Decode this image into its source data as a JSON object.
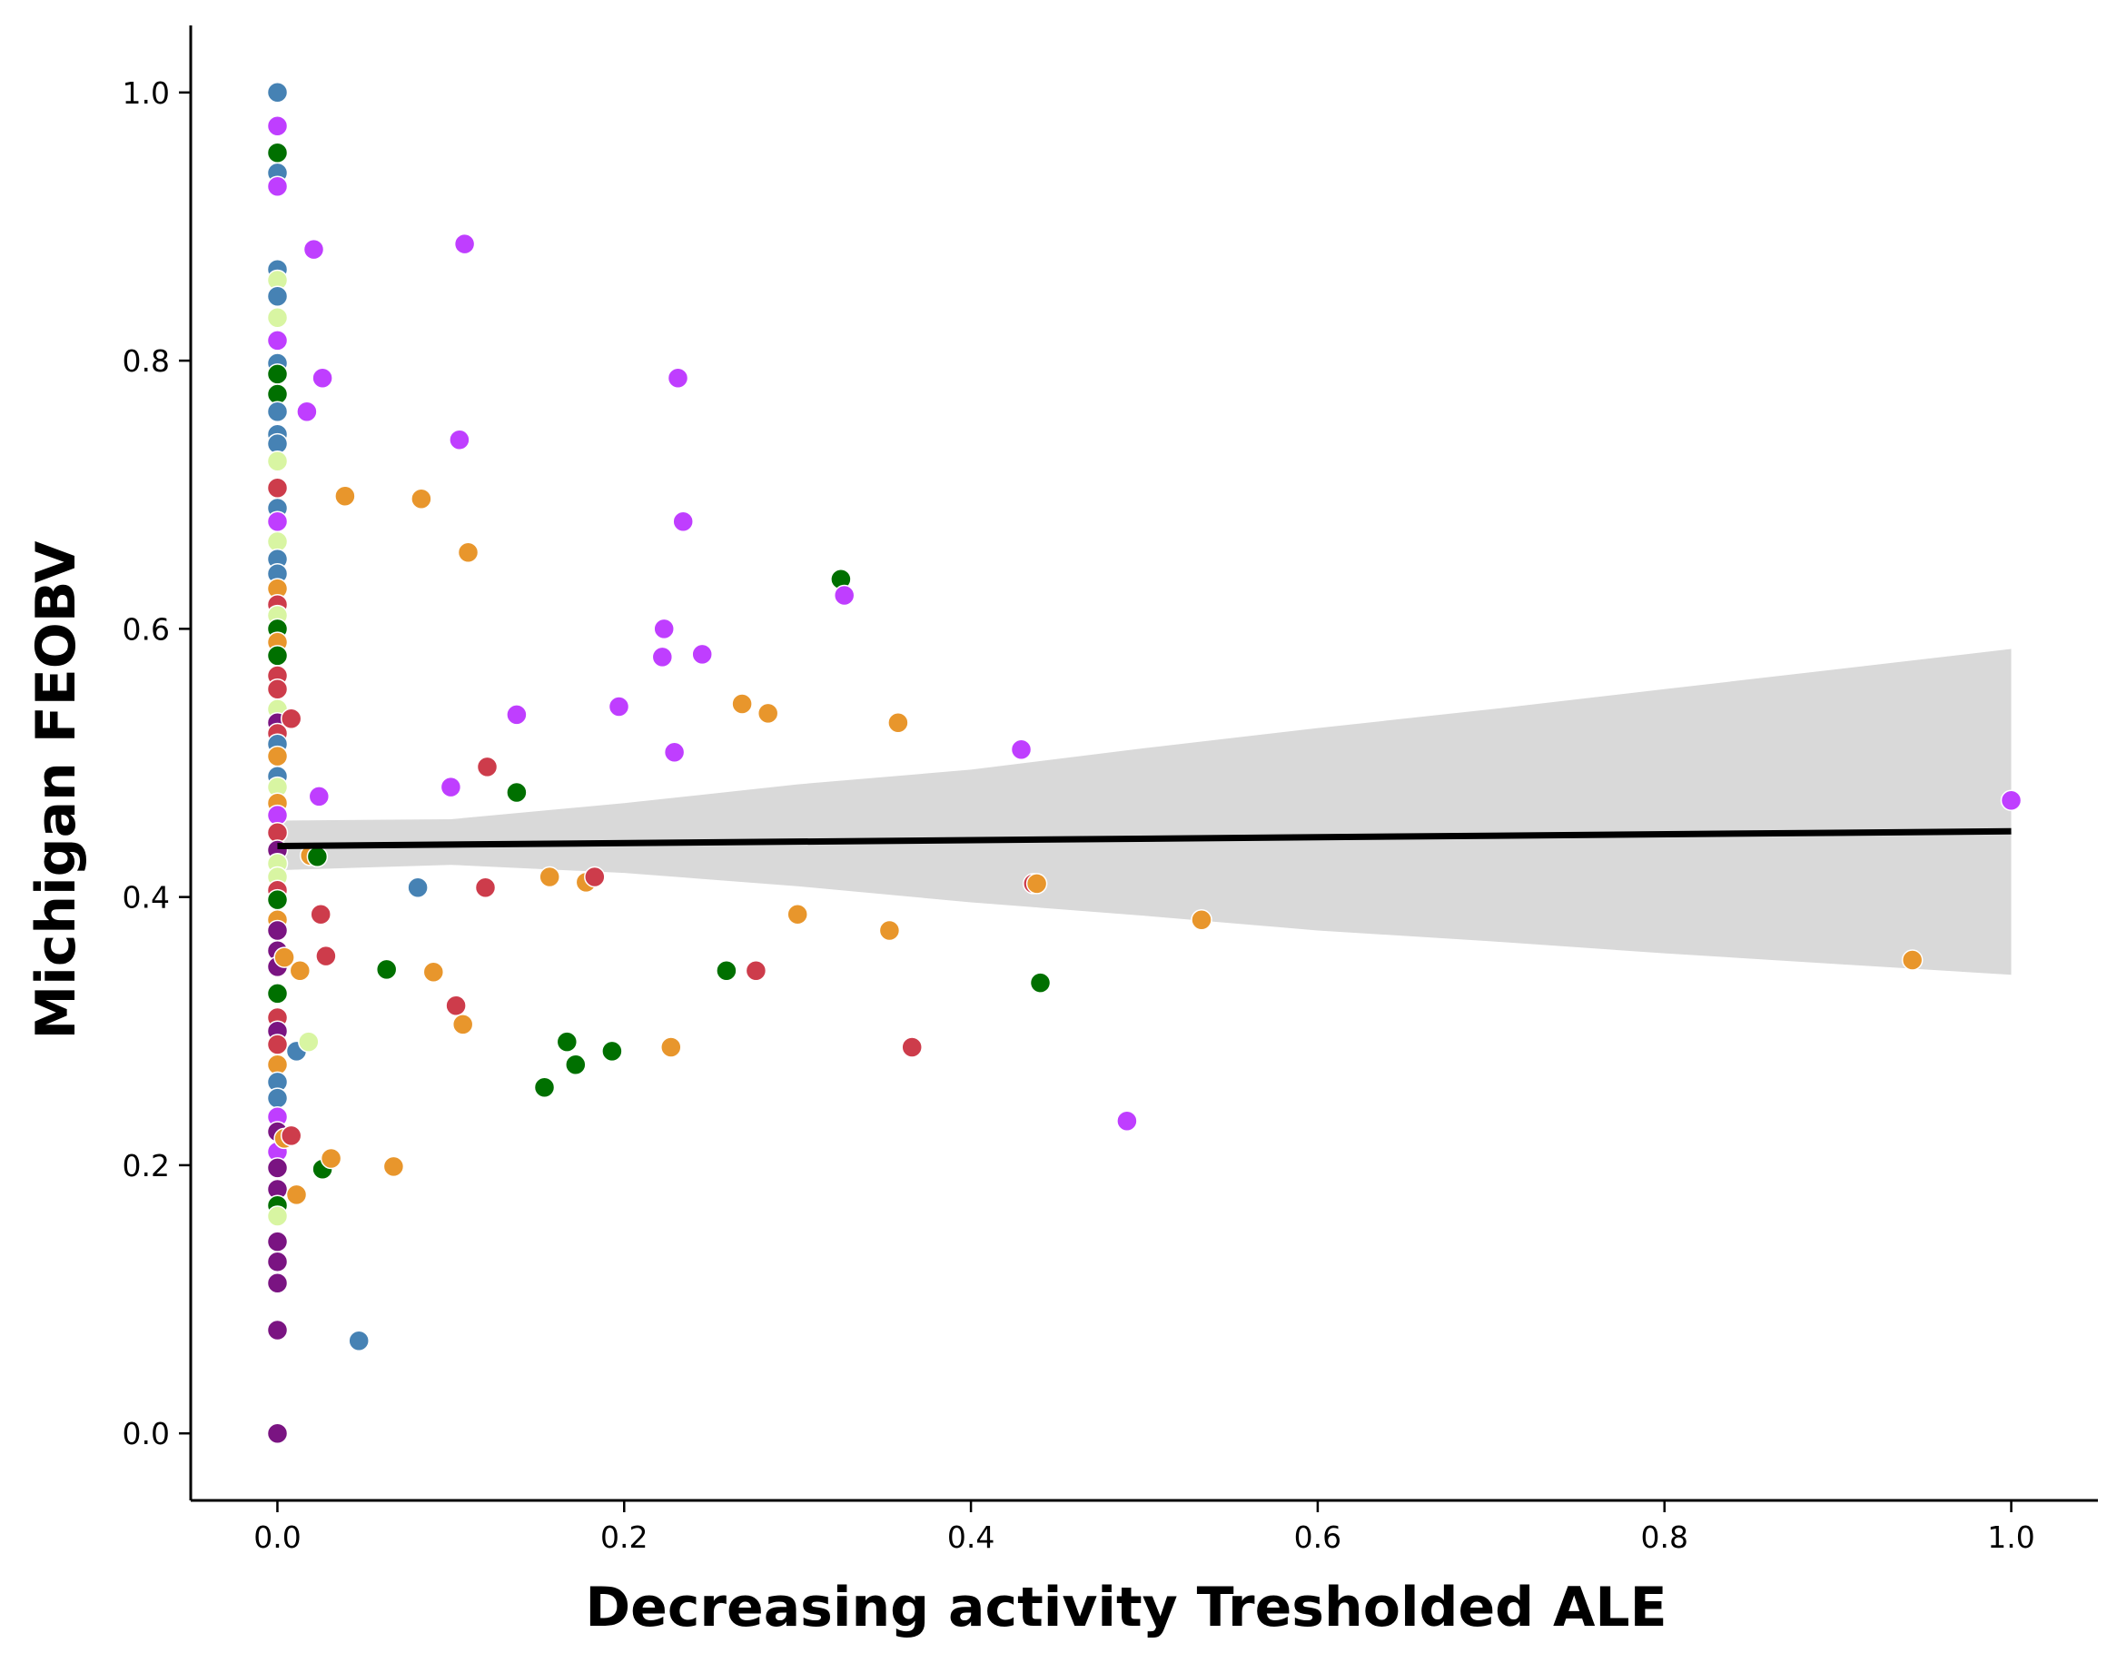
{
  "chart_data": {
    "type": "scatter",
    "title": "",
    "xlabel": "Decreasing activity Tresholded ALE",
    "ylabel": "Michigan FEOBV",
    "xlim": [
      -0.05,
      1.05
    ],
    "ylim": [
      -0.05,
      1.05
    ],
    "xticks": [
      0.0,
      0.2,
      0.4,
      0.6,
      0.8,
      1.0
    ],
    "yticks": [
      0.0,
      0.2,
      0.4,
      0.6,
      0.8,
      1.0
    ],
    "xtick_labels": [
      "0.0",
      "0.2",
      "0.4",
      "0.6",
      "0.8",
      "1.0"
    ],
    "ytick_labels": [
      "0.0",
      "0.2",
      "0.4",
      "0.6",
      "0.8",
      "1.0"
    ],
    "grid": false,
    "legend": "none",
    "colors": {
      "blue": "#4682b4",
      "magenta": "#bf3eff",
      "green": "#007000",
      "orange": "#e8962c",
      "red": "#cd3c4b",
      "lime": "#d8f5a2",
      "purple": "#7a1482",
      "regression": "#000000",
      "ci_band": "#d9d9d9"
    },
    "points": [
      {
        "x": 0.0,
        "y": 1.0,
        "c": "blue"
      },
      {
        "x": 0.0,
        "y": 0.975,
        "c": "magenta"
      },
      {
        "x": 0.0,
        "y": 0.955,
        "c": "green"
      },
      {
        "x": 0.0,
        "y": 0.94,
        "c": "blue"
      },
      {
        "x": 0.0,
        "y": 0.93,
        "c": "magenta"
      },
      {
        "x": 0.0,
        "y": 0.868,
        "c": "blue"
      },
      {
        "x": 0.0,
        "y": 0.86,
        "c": "lime"
      },
      {
        "x": 0.0,
        "y": 0.848,
        "c": "blue"
      },
      {
        "x": 0.0,
        "y": 0.832,
        "c": "lime"
      },
      {
        "x": 0.0,
        "y": 0.815,
        "c": "magenta"
      },
      {
        "x": 0.0,
        "y": 0.798,
        "c": "blue"
      },
      {
        "x": 0.0,
        "y": 0.79,
        "c": "green"
      },
      {
        "x": 0.0,
        "y": 0.775,
        "c": "green"
      },
      {
        "x": 0.0,
        "y": 0.762,
        "c": "blue"
      },
      {
        "x": 0.0,
        "y": 0.745,
        "c": "blue"
      },
      {
        "x": 0.0,
        "y": 0.738,
        "c": "blue"
      },
      {
        "x": 0.0,
        "y": 0.725,
        "c": "lime"
      },
      {
        "x": 0.0,
        "y": 0.705,
        "c": "red"
      },
      {
        "x": 0.0,
        "y": 0.69,
        "c": "blue"
      },
      {
        "x": 0.0,
        "y": 0.68,
        "c": "magenta"
      },
      {
        "x": 0.0,
        "y": 0.665,
        "c": "lime"
      },
      {
        "x": 0.0,
        "y": 0.652,
        "c": "blue"
      },
      {
        "x": 0.0,
        "y": 0.641,
        "c": "blue"
      },
      {
        "x": 0.0,
        "y": 0.63,
        "c": "orange"
      },
      {
        "x": 0.0,
        "y": 0.618,
        "c": "red"
      },
      {
        "x": 0.0,
        "y": 0.61,
        "c": "lime"
      },
      {
        "x": 0.0,
        "y": 0.6,
        "c": "green"
      },
      {
        "x": 0.0,
        "y": 0.59,
        "c": "orange"
      },
      {
        "x": 0.0,
        "y": 0.58,
        "c": "green"
      },
      {
        "x": 0.0,
        "y": 0.565,
        "c": "red"
      },
      {
        "x": 0.0,
        "y": 0.555,
        "c": "red"
      },
      {
        "x": 0.0,
        "y": 0.54,
        "c": "lime"
      },
      {
        "x": 0.0,
        "y": 0.53,
        "c": "purple"
      },
      {
        "x": 0.0,
        "y": 0.522,
        "c": "red"
      },
      {
        "x": 0.0,
        "y": 0.514,
        "c": "blue"
      },
      {
        "x": 0.0,
        "y": 0.505,
        "c": "orange"
      },
      {
        "x": 0.0,
        "y": 0.49,
        "c": "blue"
      },
      {
        "x": 0.0,
        "y": 0.482,
        "c": "lime"
      },
      {
        "x": 0.0,
        "y": 0.47,
        "c": "orange"
      },
      {
        "x": 0.0,
        "y": 0.461,
        "c": "magenta"
      },
      {
        "x": 0.0,
        "y": 0.448,
        "c": "red"
      },
      {
        "x": 0.0,
        "y": 0.435,
        "c": "purple"
      },
      {
        "x": 0.0,
        "y": 0.425,
        "c": "lime"
      },
      {
        "x": 0.0,
        "y": 0.415,
        "c": "lime"
      },
      {
        "x": 0.0,
        "y": 0.405,
        "c": "red"
      },
      {
        "x": 0.0,
        "y": 0.398,
        "c": "green"
      },
      {
        "x": 0.0,
        "y": 0.383,
        "c": "orange"
      },
      {
        "x": 0.0,
        "y": 0.375,
        "c": "purple"
      },
      {
        "x": 0.0,
        "y": 0.36,
        "c": "purple"
      },
      {
        "x": 0.0,
        "y": 0.348,
        "c": "purple"
      },
      {
        "x": 0.0,
        "y": 0.328,
        "c": "green"
      },
      {
        "x": 0.0,
        "y": 0.31,
        "c": "red"
      },
      {
        "x": 0.0,
        "y": 0.3,
        "c": "purple"
      },
      {
        "x": 0.0,
        "y": 0.29,
        "c": "red"
      },
      {
        "x": 0.0,
        "y": 0.275,
        "c": "orange"
      },
      {
        "x": 0.0,
        "y": 0.262,
        "c": "blue"
      },
      {
        "x": 0.0,
        "y": 0.25,
        "c": "blue"
      },
      {
        "x": 0.0,
        "y": 0.236,
        "c": "magenta"
      },
      {
        "x": 0.0,
        "y": 0.225,
        "c": "purple"
      },
      {
        "x": 0.0,
        "y": 0.21,
        "c": "magenta"
      },
      {
        "x": 0.0,
        "y": 0.198,
        "c": "purple"
      },
      {
        "x": 0.0,
        "y": 0.182,
        "c": "purple"
      },
      {
        "x": 0.0,
        "y": 0.17,
        "c": "green"
      },
      {
        "x": 0.0,
        "y": 0.162,
        "c": "lime"
      },
      {
        "x": 0.0,
        "y": 0.143,
        "c": "purple"
      },
      {
        "x": 0.0,
        "y": 0.128,
        "c": "purple"
      },
      {
        "x": 0.0,
        "y": 0.112,
        "c": "purple"
      },
      {
        "x": 0.0,
        "y": 0.077,
        "c": "purple"
      },
      {
        "x": 0.0,
        "y": 0.0,
        "c": "purple"
      },
      {
        "x": 0.004,
        "y": 0.22,
        "c": "orange"
      },
      {
        "x": 0.004,
        "y": 0.355,
        "c": "orange"
      },
      {
        "x": 0.008,
        "y": 0.222,
        "c": "red"
      },
      {
        "x": 0.008,
        "y": 0.533,
        "c": "red"
      },
      {
        "x": 0.011,
        "y": 0.178,
        "c": "orange"
      },
      {
        "x": 0.011,
        "y": 0.285,
        "c": "blue"
      },
      {
        "x": 0.013,
        "y": 0.345,
        "c": "orange"
      },
      {
        "x": 0.017,
        "y": 0.762,
        "c": "magenta"
      },
      {
        "x": 0.018,
        "y": 0.292,
        "c": "lime"
      },
      {
        "x": 0.019,
        "y": 0.431,
        "c": "orange"
      },
      {
        "x": 0.021,
        "y": 0.883,
        "c": "magenta"
      },
      {
        "x": 0.023,
        "y": 0.43,
        "c": "green"
      },
      {
        "x": 0.024,
        "y": 0.475,
        "c": "magenta"
      },
      {
        "x": 0.025,
        "y": 0.387,
        "c": "red"
      },
      {
        "x": 0.026,
        "y": 0.787,
        "c": "magenta"
      },
      {
        "x": 0.026,
        "y": 0.197,
        "c": "green"
      },
      {
        "x": 0.028,
        "y": 0.356,
        "c": "red"
      },
      {
        "x": 0.031,
        "y": 0.205,
        "c": "orange"
      },
      {
        "x": 0.039,
        "y": 0.699,
        "c": "orange"
      },
      {
        "x": 0.047,
        "y": 0.069,
        "c": "blue"
      },
      {
        "x": 0.063,
        "y": 0.346,
        "c": "green"
      },
      {
        "x": 0.067,
        "y": 0.199,
        "c": "orange"
      },
      {
        "x": 0.081,
        "y": 0.407,
        "c": "blue"
      },
      {
        "x": 0.083,
        "y": 0.697,
        "c": "orange"
      },
      {
        "x": 0.09,
        "y": 0.344,
        "c": "orange"
      },
      {
        "x": 0.1,
        "y": 0.482,
        "c": "magenta"
      },
      {
        "x": 0.103,
        "y": 0.319,
        "c": "red"
      },
      {
        "x": 0.105,
        "y": 0.741,
        "c": "magenta"
      },
      {
        "x": 0.107,
        "y": 0.305,
        "c": "orange"
      },
      {
        "x": 0.108,
        "y": 0.887,
        "c": "magenta"
      },
      {
        "x": 0.11,
        "y": 0.657,
        "c": "orange"
      },
      {
        "x": 0.12,
        "y": 0.407,
        "c": "red"
      },
      {
        "x": 0.121,
        "y": 0.497,
        "c": "red"
      },
      {
        "x": 0.138,
        "y": 0.478,
        "c": "green"
      },
      {
        "x": 0.138,
        "y": 0.536,
        "c": "magenta"
      },
      {
        "x": 0.154,
        "y": 0.258,
        "c": "green"
      },
      {
        "x": 0.157,
        "y": 0.415,
        "c": "orange"
      },
      {
        "x": 0.167,
        "y": 0.292,
        "c": "green"
      },
      {
        "x": 0.172,
        "y": 0.275,
        "c": "green"
      },
      {
        "x": 0.178,
        "y": 0.411,
        "c": "orange"
      },
      {
        "x": 0.183,
        "y": 0.415,
        "c": "red"
      },
      {
        "x": 0.193,
        "y": 0.285,
        "c": "green"
      },
      {
        "x": 0.197,
        "y": 0.542,
        "c": "magenta"
      },
      {
        "x": 0.222,
        "y": 0.579,
        "c": "magenta"
      },
      {
        "x": 0.223,
        "y": 0.6,
        "c": "magenta"
      },
      {
        "x": 0.227,
        "y": 0.288,
        "c": "orange"
      },
      {
        "x": 0.229,
        "y": 0.508,
        "c": "magenta"
      },
      {
        "x": 0.231,
        "y": 0.787,
        "c": "magenta"
      },
      {
        "x": 0.234,
        "y": 0.68,
        "c": "magenta"
      },
      {
        "x": 0.245,
        "y": 0.581,
        "c": "magenta"
      },
      {
        "x": 0.259,
        "y": 0.345,
        "c": "green"
      },
      {
        "x": 0.268,
        "y": 0.544,
        "c": "orange"
      },
      {
        "x": 0.276,
        "y": 0.345,
        "c": "red"
      },
      {
        "x": 0.283,
        "y": 0.537,
        "c": "orange"
      },
      {
        "x": 0.3,
        "y": 0.387,
        "c": "orange"
      },
      {
        "x": 0.325,
        "y": 0.637,
        "c": "green"
      },
      {
        "x": 0.327,
        "y": 0.625,
        "c": "magenta"
      },
      {
        "x": 0.353,
        "y": 0.375,
        "c": "orange"
      },
      {
        "x": 0.358,
        "y": 0.53,
        "c": "orange"
      },
      {
        "x": 0.366,
        "y": 0.288,
        "c": "red"
      },
      {
        "x": 0.429,
        "y": 0.51,
        "c": "magenta"
      },
      {
        "x": 0.436,
        "y": 0.41,
        "c": "red"
      },
      {
        "x": 0.438,
        "y": 0.41,
        "c": "orange"
      },
      {
        "x": 0.44,
        "y": 0.336,
        "c": "green"
      },
      {
        "x": 0.49,
        "y": 0.233,
        "c": "magenta"
      },
      {
        "x": 0.533,
        "y": 0.383,
        "c": "orange"
      },
      {
        "x": 0.943,
        "y": 0.353,
        "c": "orange"
      },
      {
        "x": 1.0,
        "y": 0.472,
        "c": "magenta"
      }
    ],
    "regression": {
      "x": [
        0.0,
        1.0
      ],
      "y": [
        0.438,
        0.449
      ]
    },
    "ci_band": {
      "x": [
        0.0,
        0.1,
        0.2,
        0.3,
        0.4,
        0.5,
        0.6,
        0.7,
        0.8,
        0.9,
        1.0
      ],
      "upper": [
        0.457,
        0.458,
        0.47,
        0.484,
        0.495,
        0.511,
        0.526,
        0.54,
        0.555,
        0.57,
        0.585
      ],
      "lower": [
        0.42,
        0.424,
        0.418,
        0.408,
        0.396,
        0.386,
        0.375,
        0.367,
        0.358,
        0.35,
        0.342
      ]
    }
  }
}
